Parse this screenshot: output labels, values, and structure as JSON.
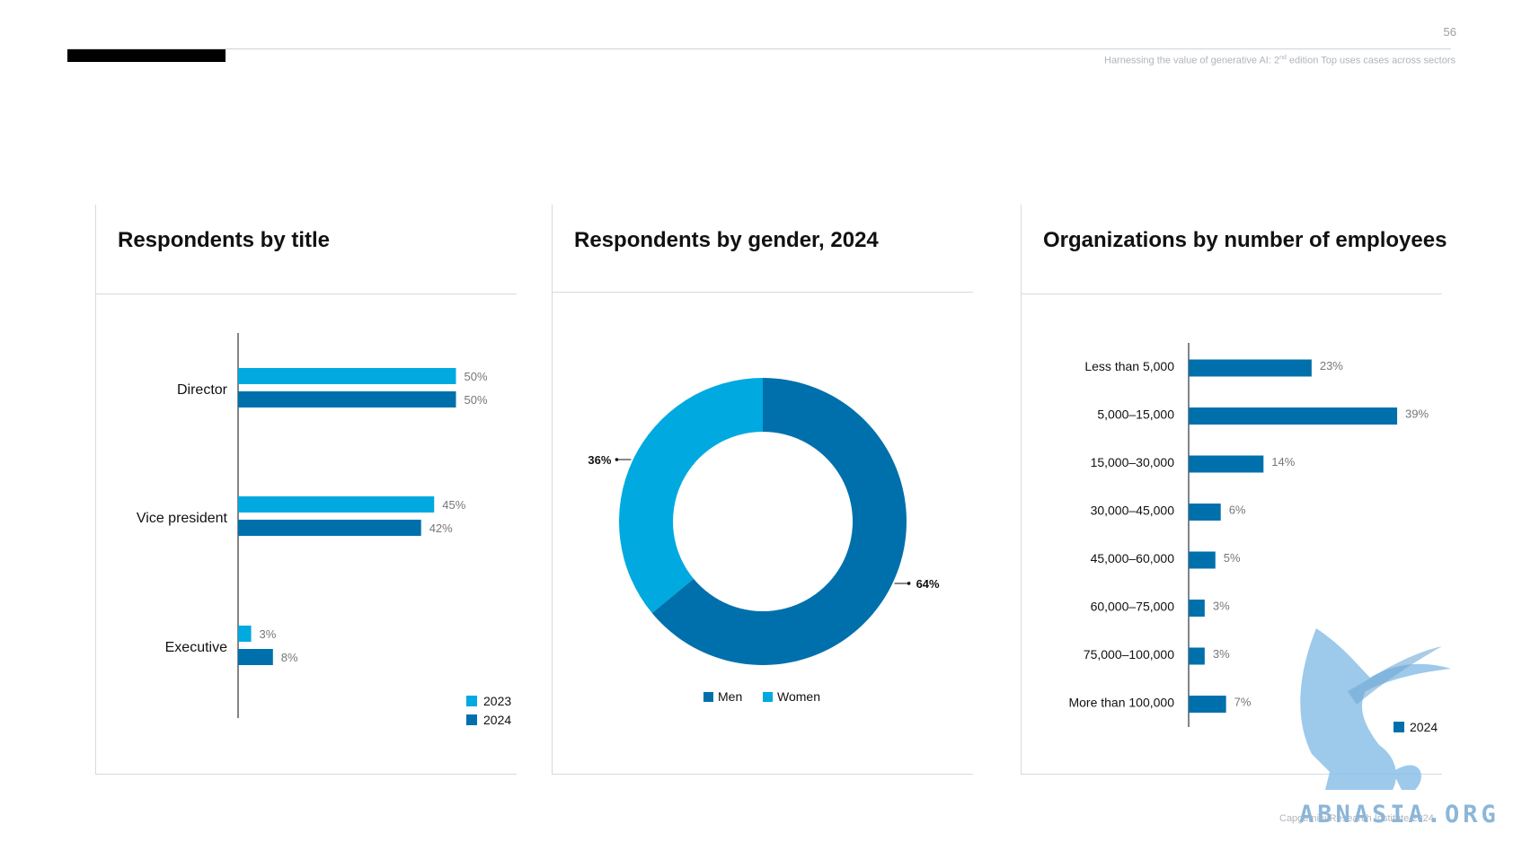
{
  "header": {
    "page_number": "56",
    "report_title_main": "Harnessing the value of generative AI: 2",
    "report_title_sup": "nd",
    "report_title_rest": " edition Top uses cases across sectors"
  },
  "footer": {
    "copyright": "Capgemini Research Institute 2024",
    "watermark": "ABNASIA.ORG"
  },
  "colors": {
    "light_blue": "#00a9e0",
    "dark_blue": "#0070ad",
    "axis": "#333333",
    "value_label": "#777777"
  },
  "chart_data": [
    {
      "type": "bar",
      "orientation": "horizontal",
      "title": "Respondents by title",
      "categories": [
        "Director",
        "Vice president",
        "Executive"
      ],
      "series": [
        {
          "name": "2023",
          "values": [
            50,
            45,
            3
          ]
        },
        {
          "name": "2024",
          "values": [
            50,
            42,
            8
          ]
        }
      ],
      "value_labels": [
        [
          "50%",
          "45%",
          "3%"
        ],
        [
          "50%",
          "42%",
          "8%"
        ]
      ],
      "unit": "%",
      "legend": "bottom-right"
    },
    {
      "type": "pie",
      "donut": true,
      "title": "Respondents by gender, 2024",
      "categories": [
        "Men",
        "Women"
      ],
      "values": [
        64,
        36
      ],
      "value_labels": [
        "64%",
        "36%"
      ],
      "unit": "%",
      "legend": "bottom"
    },
    {
      "type": "bar",
      "orientation": "horizontal",
      "title": "Organizations by number of employees",
      "categories": [
        "Less than 5,000",
        "5,000–15,000",
        "15,000–30,000",
        "30,000–45,000",
        "45,000–60,000",
        "60,000–75,000",
        "75,000–100,000",
        "More than 100,000"
      ],
      "series": [
        {
          "name": "2024",
          "values": [
            23,
            39,
            14,
            6,
            5,
            3,
            3,
            7
          ]
        }
      ],
      "value_labels": [
        [
          "23%",
          "39%",
          "14%",
          "6%",
          "5%",
          "3%",
          "3%",
          "7%"
        ]
      ],
      "unit": "%",
      "legend": "bottom-right"
    }
  ]
}
